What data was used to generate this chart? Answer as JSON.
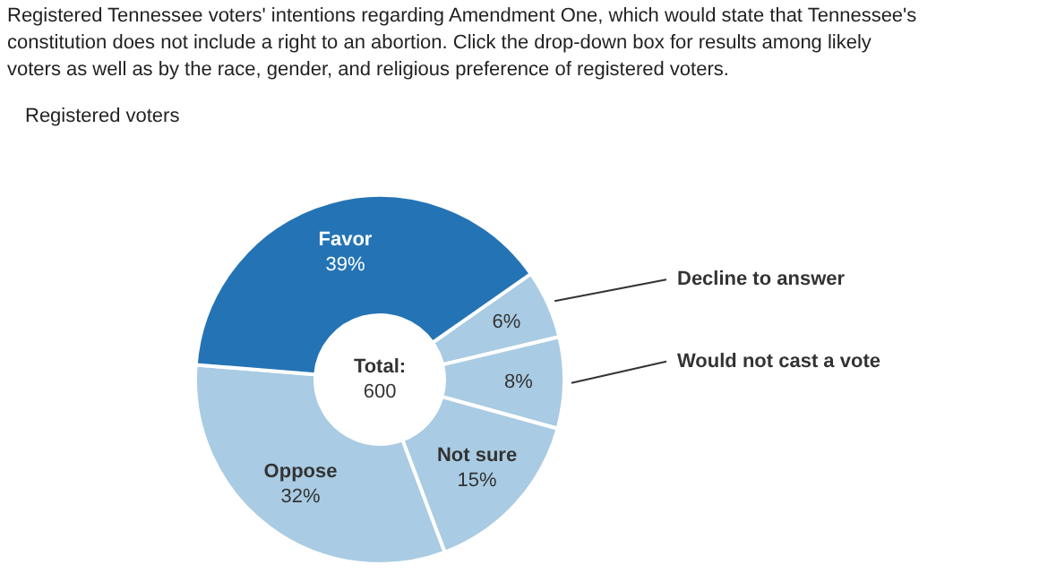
{
  "chart_data": {
    "type": "donut",
    "title": "Registered Tennessee voters' intentions regarding Amendment One, which would state that Tennessee's constitution does not include a right to an abortion. Click the drop-down box for results among likely voters as well as by the race, gender, and religious preference of registered voters.",
    "categories": [
      "Decline to answer",
      "Would not cast a vote",
      "Not sure",
      "Oppose",
      "Favor"
    ],
    "values": [
      6,
      8,
      15,
      32,
      39
    ],
    "value_labels": [
      "6%",
      "8%",
      "15%",
      "32%",
      "39%"
    ],
    "colors": [
      "#a9cbe3",
      "#a9cbe3",
      "#a9cbe3",
      "#a9cbe3",
      "#2474b5"
    ],
    "annotations": [
      "Registered voters",
      "Total:",
      "600"
    ]
  }
}
